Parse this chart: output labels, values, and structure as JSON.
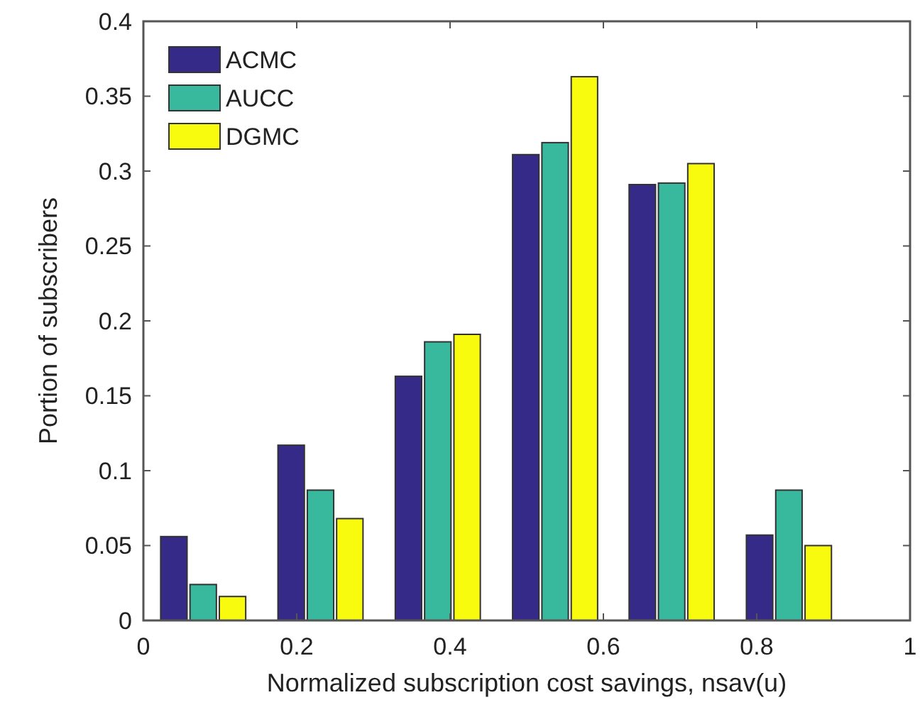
{
  "chart_data": {
    "type": "bar",
    "xlabel": "Normalized subscription cost savings, nsav(u)",
    "ylabel": "Portion of subscribers",
    "x": [
      0.078,
      0.231,
      0.384,
      0.537,
      0.689,
      0.842
    ],
    "series": [
      {
        "name": "ACMC",
        "color": "#352a87",
        "values": [
          0.056,
          0.117,
          0.163,
          0.311,
          0.291,
          0.057
        ]
      },
      {
        "name": "AUCC",
        "color": "#38b99e",
        "values": [
          0.024,
          0.087,
          0.186,
          0.319,
          0.292,
          0.087
        ]
      },
      {
        "name": "DGMC",
        "color": "#f9fb0e",
        "values": [
          0.016,
          0.068,
          0.191,
          0.363,
          0.305,
          0.05
        ]
      }
    ],
    "xlim": [
      0,
      1
    ],
    "xticks": [
      0,
      0.2,
      0.4,
      0.6,
      0.8,
      1
    ],
    "ylim": [
      0,
      0.4
    ],
    "yticks": [
      0,
      0.05,
      0.1,
      0.15,
      0.2,
      0.25,
      0.3,
      0.35,
      0.4
    ],
    "grid": false,
    "legend": "top left"
  }
}
